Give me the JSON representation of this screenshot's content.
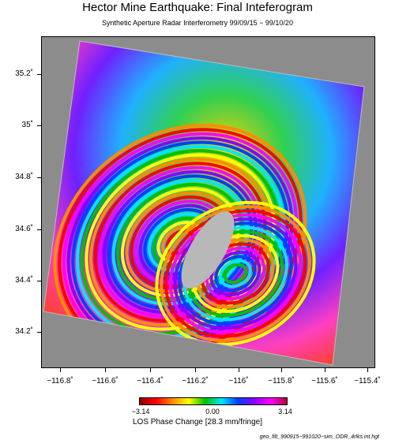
{
  "title": "Hector Mine Earthquake: Final Inteferogram",
  "subtitle": "Synthetic Aperture Radar Interferometry 99/09/15 − 99/10/20",
  "map": {
    "y_ticks": [
      "35.2˚",
      "35˚",
      "34.8˚",
      "34.6˚",
      "34.4˚",
      "34.2˚"
    ],
    "x_ticks": [
      "−116.8˚",
      "−116.6˚",
      "−116.4˚",
      "−116.2˚",
      "−116˚",
      "−115.8˚",
      "−115.6˚",
      "−115.4˚"
    ],
    "background_color": "#8c8c8c"
  },
  "colorbar": {
    "min_label": "−3.14",
    "mid_label": "0.00",
    "max_label": "3.14",
    "title": "LOS Phase Change [28.3 mm/fringe]"
  },
  "footer": {
    "filename": "geo_filt_990915−991020−sim_ODR_4rlks.int.hgt"
  }
}
